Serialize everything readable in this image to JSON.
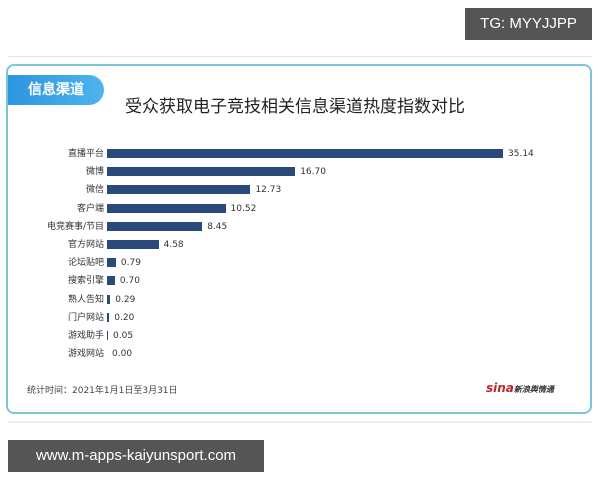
{
  "watermark_top": "TG: MYYJJPP",
  "watermark_bottom": "www.m-apps-kaiyunsport.com",
  "card": {
    "tag": "信息渠道",
    "title": "受众获取电子竞技相关信息渠道热度指数对比",
    "footer_note": "统计时间：2021年1月1日至3月31日",
    "source_logo": "sina",
    "source_text": "新浪舆情通"
  },
  "chart_data": {
    "type": "bar",
    "orientation": "horizontal",
    "title": "受众获取电子竞技相关信息渠道热度指数对比",
    "xlabel": "",
    "ylabel": "",
    "categories": [
      "直播平台",
      "微博",
      "微信",
      "客户端",
      "电竞赛事/节目",
      "官方网站",
      "论坛贴吧",
      "搜索引擎",
      "熟人告知",
      "门户网站",
      "游戏助手",
      "游戏网站"
    ],
    "values": [
      35.14,
      16.7,
      12.73,
      10.52,
      8.45,
      4.58,
      0.79,
      0.7,
      0.29,
      0.2,
      0.05,
      0.0
    ],
    "value_labels": [
      "35.14",
      "16.70",
      "12.73",
      "10.52",
      "8.45",
      "4.58",
      "0.79",
      "0.70",
      "0.29",
      "0.20",
      "0.05",
      "0.00"
    ],
    "bar_color": "#2b4a7c",
    "grid": false,
    "legend": "none"
  }
}
